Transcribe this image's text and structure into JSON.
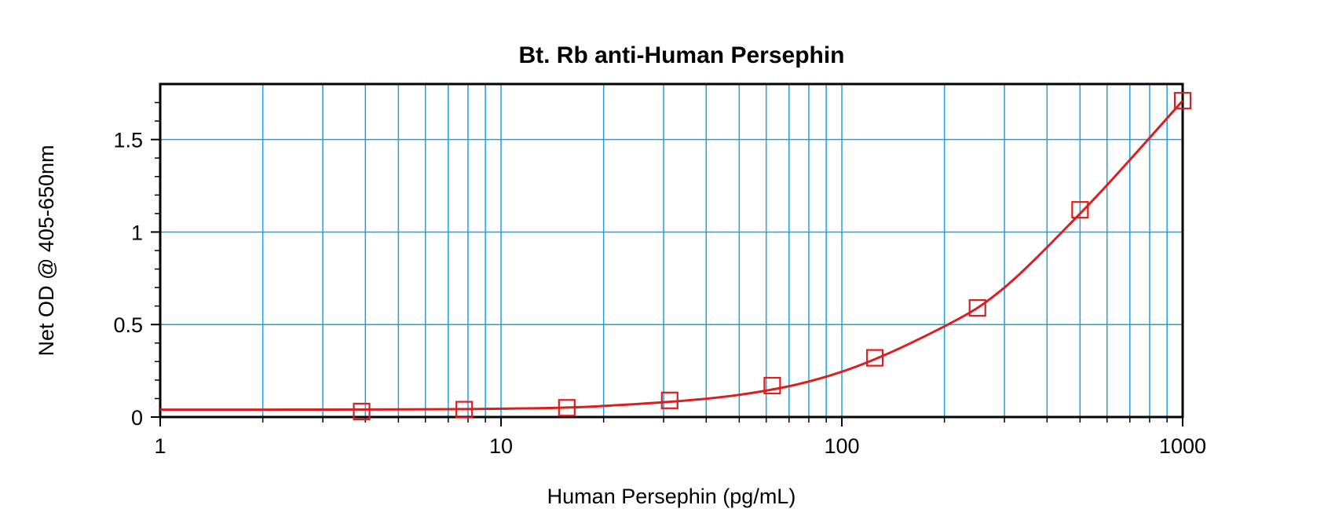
{
  "chart_data": {
    "type": "scatter",
    "title": "Bt. Rb anti-Human Persephin",
    "xlabel": "Human Persephin (pg/mL)",
    "ylabel": "Net OD @ 405-650nm",
    "x_scale": "log",
    "xlim": [
      1,
      1000
    ],
    "ylim": [
      0,
      1.8
    ],
    "grid": true,
    "legend": "none",
    "x_ticks": [
      1,
      10,
      100,
      1000
    ],
    "x_tick_labels": [
      "1",
      "10",
      "100",
      "1000"
    ],
    "y_ticks": [
      0,
      0.5,
      1,
      1.5
    ],
    "y_tick_labels": [
      "0",
      "0.5",
      "1",
      "1.5"
    ],
    "series": [
      {
        "marker": "open-square",
        "color": "#d91f1f",
        "x": [
          3.9,
          7.8,
          15.6,
          31.25,
          62.5,
          125,
          250,
          500,
          1000
        ],
        "y": [
          0.03,
          0.04,
          0.05,
          0.09,
          0.17,
          0.32,
          0.59,
          1.12,
          1.71
        ]
      },
      {
        "type": "line",
        "fit": "4PL",
        "color": "#d91f1f",
        "x": [
          1,
          2,
          5,
          10,
          20,
          50,
          100,
          200,
          300,
          500,
          700,
          1000
        ],
        "y": [
          0.04,
          0.04,
          0.041,
          0.045,
          0.06,
          0.12,
          0.245,
          0.49,
          0.7,
          1.1,
          1.39,
          1.71
        ]
      }
    ],
    "colors": {
      "grid": "#1e9fe0",
      "series": "#d91f1f",
      "axis": "#000000"
    }
  }
}
